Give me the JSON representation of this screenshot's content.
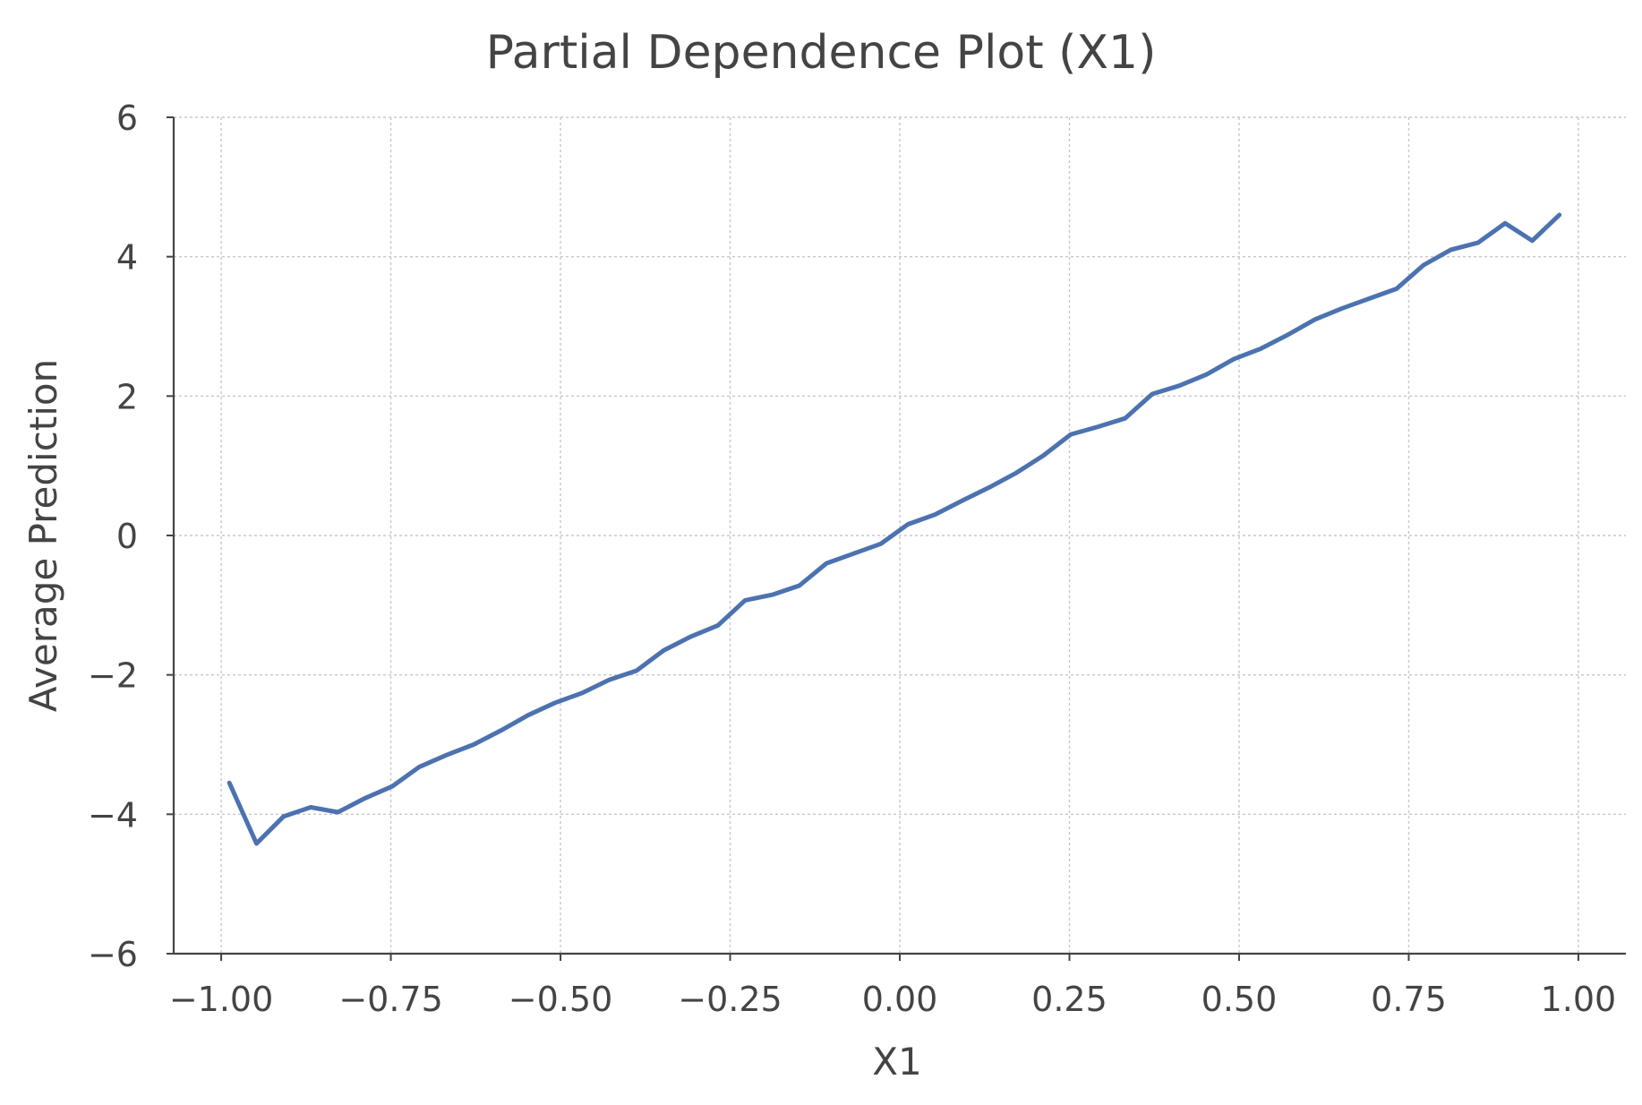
{
  "chart_data": {
    "type": "line",
    "title": "Partial Dependence Plot (X1)",
    "xlabel": "X1",
    "ylabel": "Average Prediction",
    "xlim": [
      -1.07,
      1.07
    ],
    "ylim": [
      -6,
      6
    ],
    "x_ticks": [
      -1.0,
      -0.75,
      -0.5,
      -0.25,
      0.0,
      0.25,
      0.5,
      0.75,
      1.0
    ],
    "x_tick_labels": [
      "−1.00",
      "−0.75",
      "−0.50",
      "−0.25",
      "0.00",
      "0.25",
      "0.50",
      "0.75",
      "1.00"
    ],
    "y_ticks": [
      -6,
      -4,
      -2,
      0,
      2,
      4,
      6
    ],
    "y_tick_labels": [
      "−6",
      "−4",
      "−2",
      "0",
      "2",
      "4",
      "6"
    ],
    "grid": true,
    "series": [
      {
        "color": "#4c72b0",
        "x": [
          -0.988,
          -0.948,
          -0.908,
          -0.868,
          -0.828,
          -0.788,
          -0.748,
          -0.708,
          -0.668,
          -0.628,
          -0.588,
          -0.548,
          -0.508,
          -0.468,
          -0.428,
          -0.388,
          -0.348,
          -0.308,
          -0.268,
          -0.228,
          -0.188,
          -0.148,
          -0.108,
          -0.068,
          -0.028,
          0.012,
          0.052,
          0.092,
          0.132,
          0.172,
          0.212,
          0.252,
          0.292,
          0.332,
          0.372,
          0.412,
          0.452,
          0.492,
          0.532,
          0.572,
          0.612,
          0.652,
          0.692,
          0.732,
          0.772,
          0.812,
          0.852,
          0.892,
          0.932,
          0.972
        ],
        "y": [
          -3.55,
          -4.42,
          -4.03,
          -3.9,
          -3.97,
          -3.77,
          -3.6,
          -3.32,
          -3.15,
          -3.0,
          -2.8,
          -2.58,
          -2.4,
          -2.26,
          -2.07,
          -1.94,
          -1.65,
          -1.45,
          -1.29,
          -0.93,
          -0.85,
          -0.72,
          -0.4,
          -0.26,
          -0.12,
          0.16,
          0.3,
          0.5,
          0.69,
          0.9,
          1.15,
          1.45,
          1.56,
          1.68,
          2.03,
          2.15,
          2.31,
          2.53,
          2.68,
          2.88,
          3.1,
          3.26,
          3.4,
          3.54,
          3.88,
          4.1,
          4.2,
          4.48,
          4.23,
          4.6
        ]
      }
    ]
  }
}
